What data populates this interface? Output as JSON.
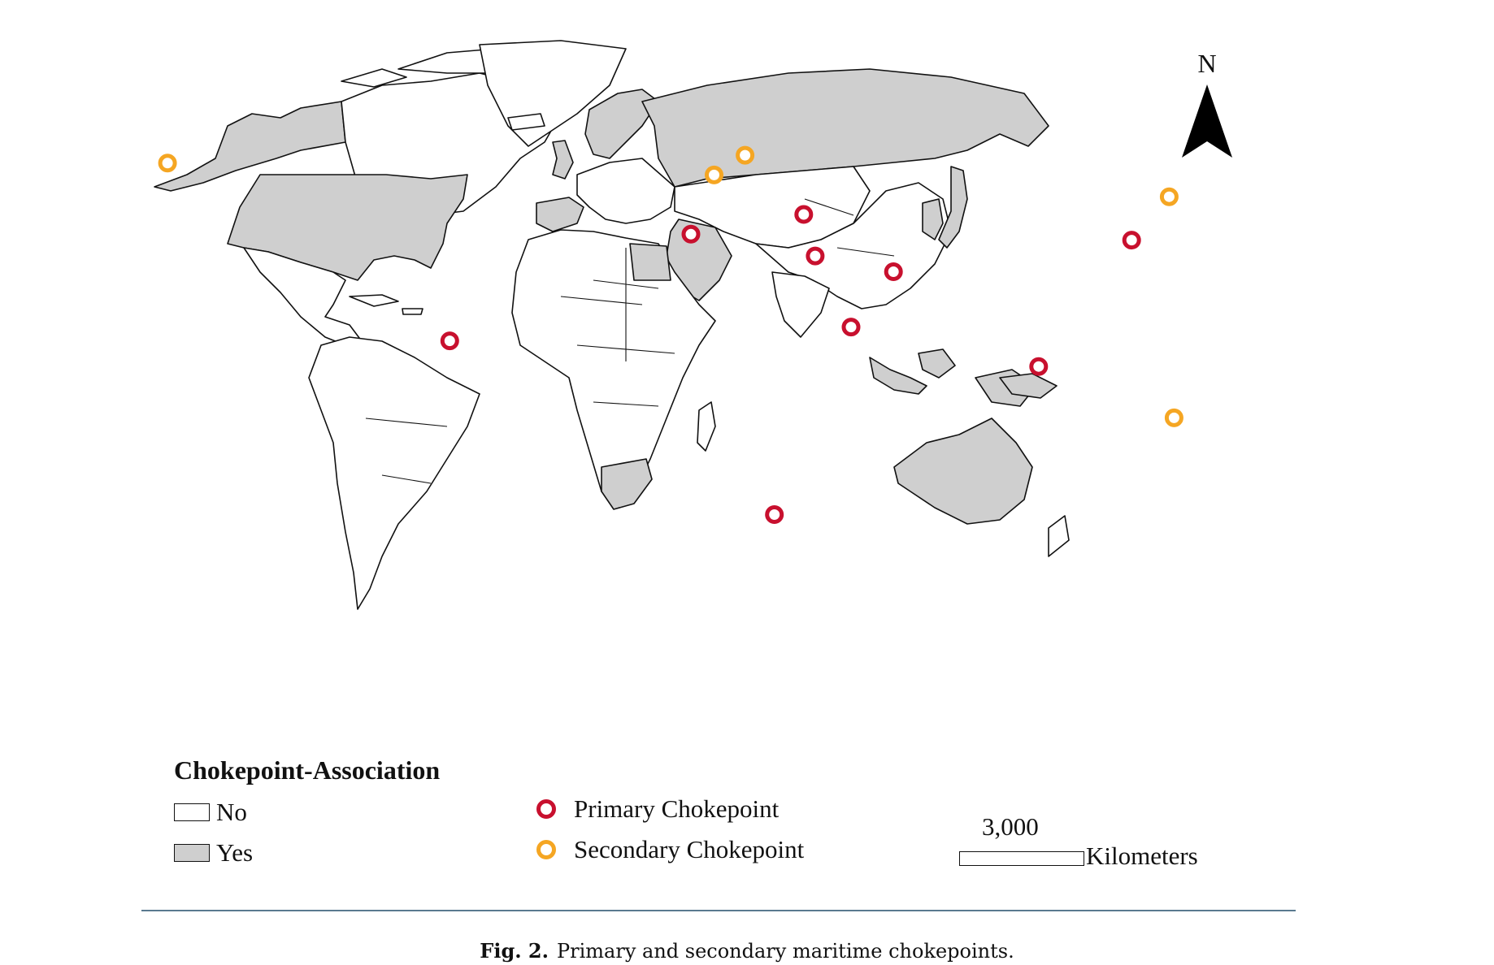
{
  "map": {
    "north_label": "N",
    "legend": {
      "title": "Chokepoint-Association",
      "no_label": "No",
      "yes_label": "Yes",
      "primary_label": "Primary Chokepoint",
      "secondary_label": "Secondary Chokepoint"
    },
    "scale": {
      "value": "3,000",
      "unit": "Kilometers"
    },
    "colors": {
      "primary": "#c8102e",
      "secondary": "#f5a623",
      "yes_fill": "#cfcfcf",
      "no_fill": "#ffffff"
    },
    "chokepoints": [
      {
        "kind": "secondary",
        "lon": -166.0,
        "lat": 54.0
      },
      {
        "kind": "primary",
        "lon": -79.5,
        "lat": 9.0
      },
      {
        "kind": "secondary",
        "lon": 1.5,
        "lat": 51.0
      },
      {
        "kind": "secondary",
        "lon": 11.0,
        "lat": 56.0
      },
      {
        "kind": "primary",
        "lon": -5.6,
        "lat": 36.0
      },
      {
        "kind": "primary",
        "lon": 29.0,
        "lat": 41.0
      },
      {
        "kind": "primary",
        "lon": 32.5,
        "lat": 30.5
      },
      {
        "kind": "primary",
        "lon": 56.5,
        "lat": 26.5
      },
      {
        "kind": "primary",
        "lon": 43.5,
        "lat": 12.5
      },
      {
        "kind": "primary",
        "lon": 20.0,
        "lat": -35.0
      },
      {
        "kind": "primary",
        "lon": 101.0,
        "lat": 2.5
      },
      {
        "kind": "primary",
        "lon": 129.5,
        "lat": 34.5
      },
      {
        "kind": "secondary",
        "lon": 141.0,
        "lat": 45.5
      },
      {
        "kind": "secondary",
        "lon": 142.5,
        "lat": -10.5
      }
    ]
  },
  "caption": {
    "label": "Fig. 2.",
    "text": "Primary and secondary maritime chokepoints."
  }
}
